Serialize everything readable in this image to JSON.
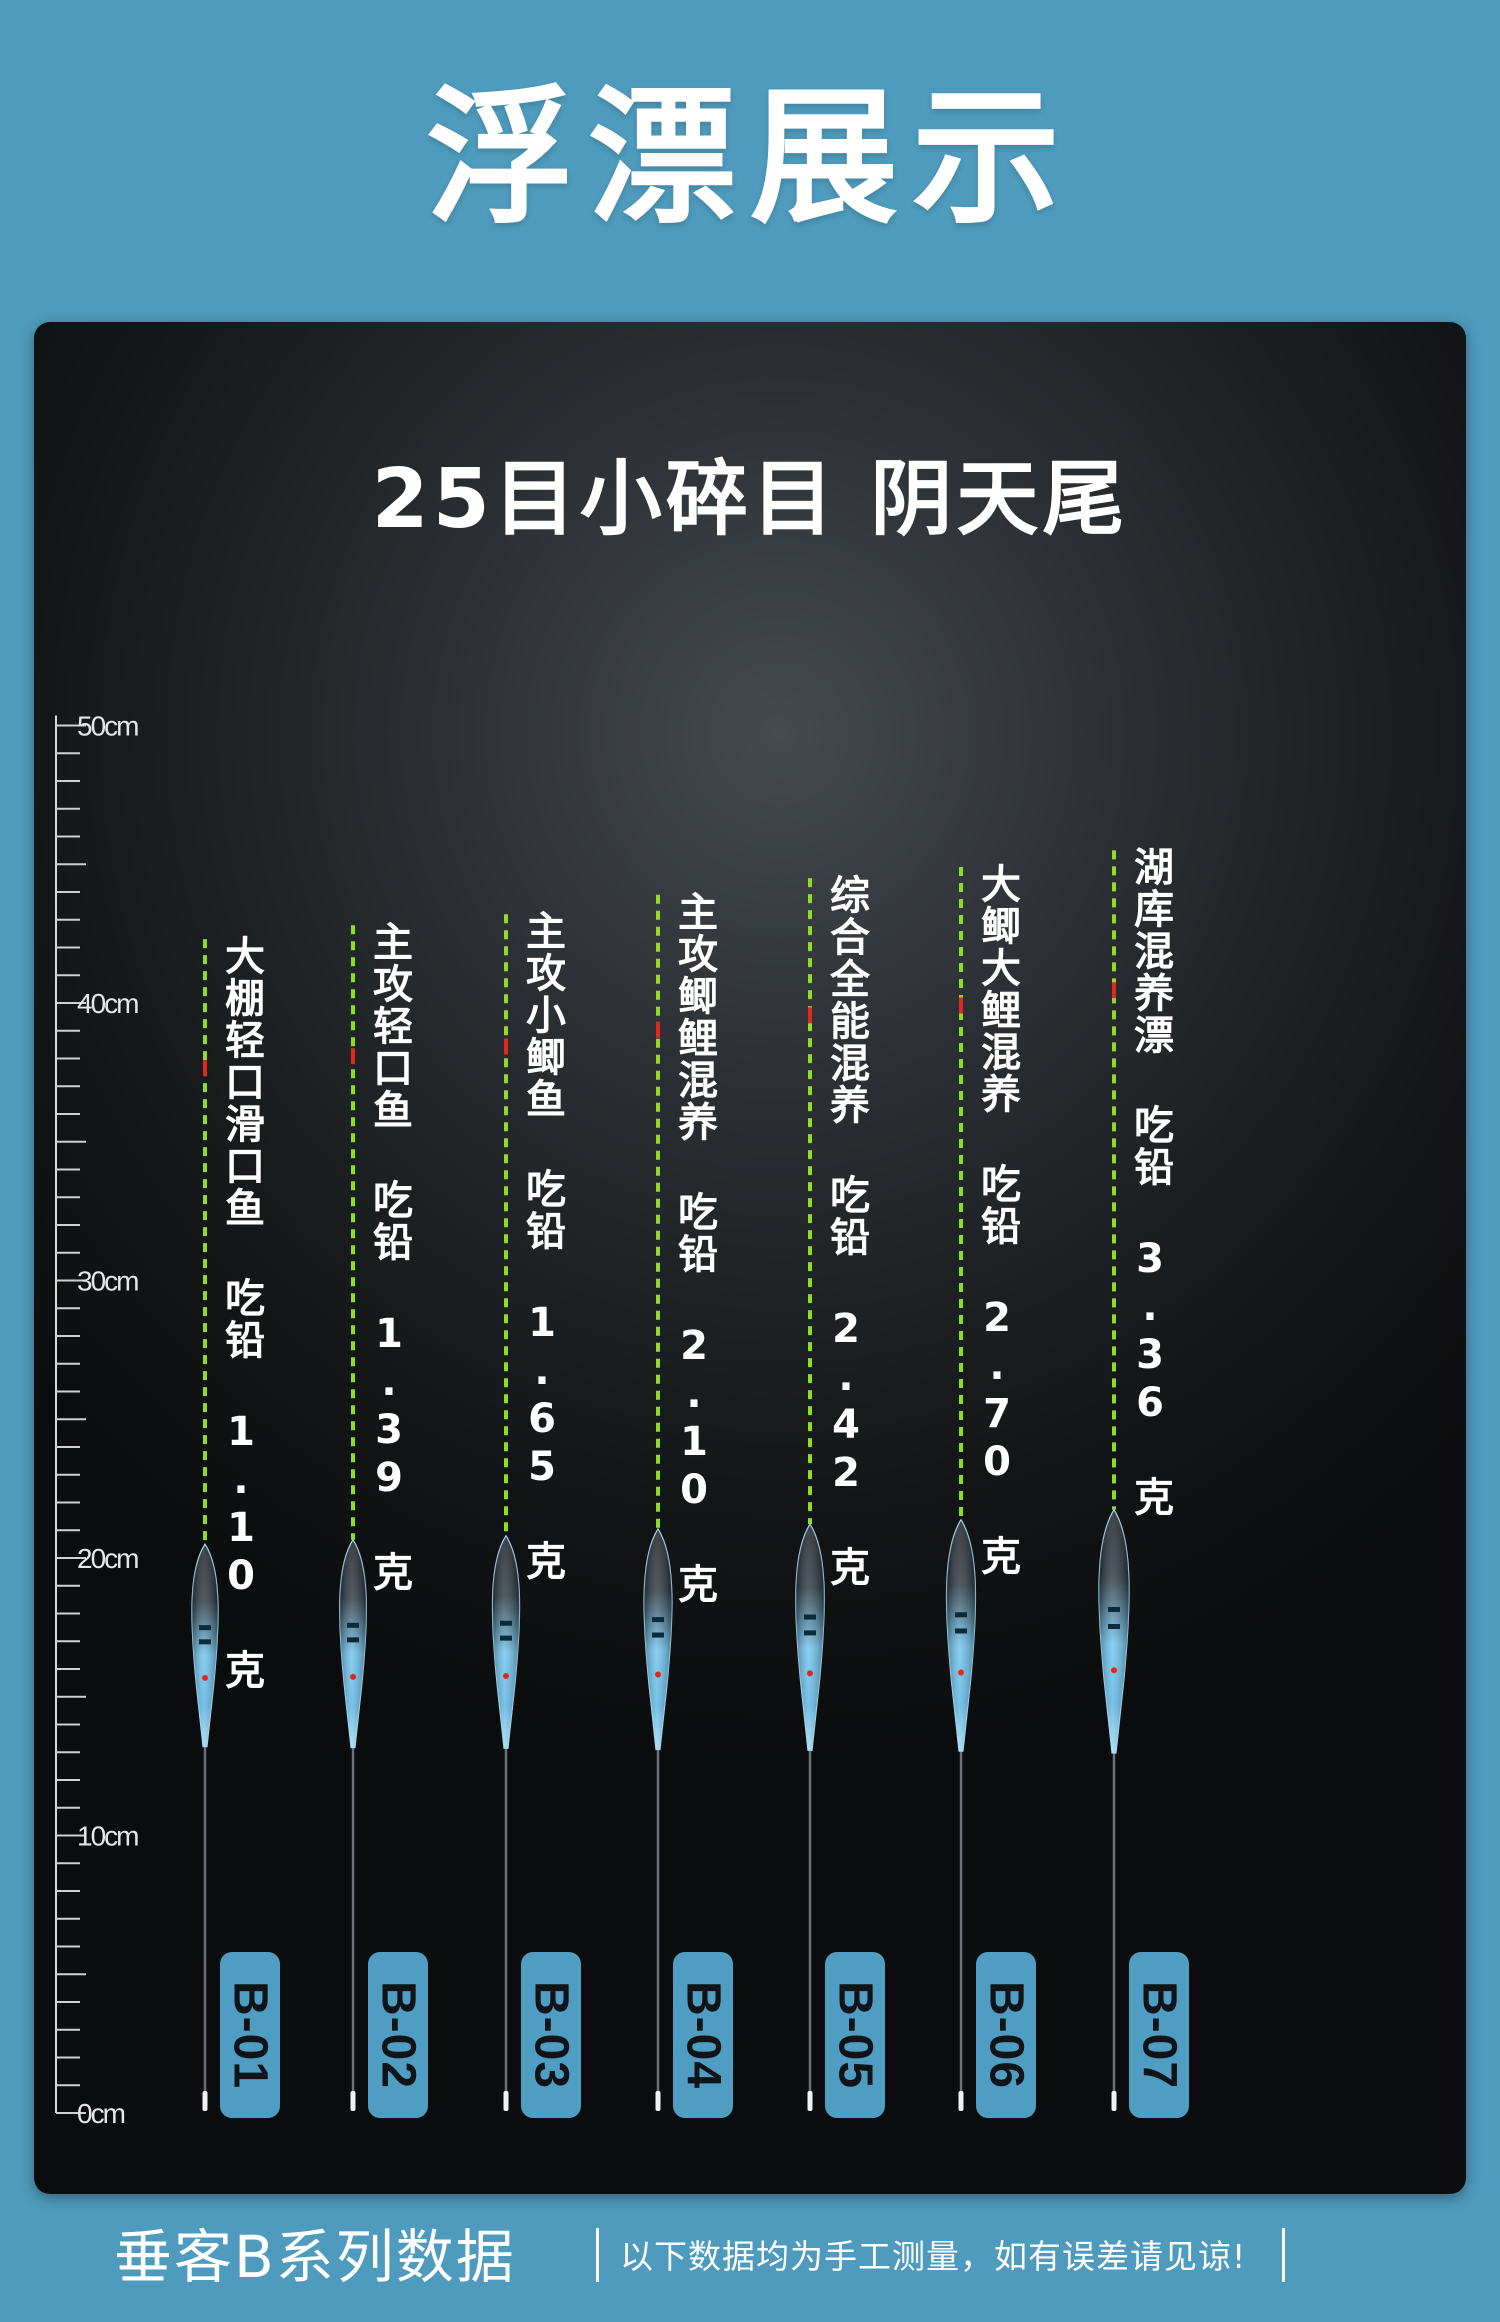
{
  "page": {
    "title": "浮漂展示",
    "background_color": "#4e9bbd"
  },
  "panel": {
    "title": "25目小碎目 阴天尾",
    "background_color": "#1a1c1e"
  },
  "ruler": {
    "unit": "cm",
    "labels": [
      "50cm",
      "40cm",
      "30cm",
      "20cm",
      "10cm",
      "0cm"
    ],
    "max_cm": 50
  },
  "floats": [
    {
      "code": "B-01",
      "description": "大棚轻口滑口鱼 吃铅 1.10 克",
      "top_cm": 42.3,
      "lead_g": 1.1
    },
    {
      "code": "B-02",
      "description": "主攻轻口鱼 吃铅 1.39 克",
      "top_cm": 42.8,
      "lead_g": 1.39
    },
    {
      "code": "B-03",
      "description": "主攻小鲫鱼 吃铅 1.65 克",
      "top_cm": 43.2,
      "lead_g": 1.65
    },
    {
      "code": "B-04",
      "description": "主攻鲫鲤混养 吃铅 2.10 克",
      "top_cm": 43.9,
      "lead_g": 2.1
    },
    {
      "code": "B-05",
      "description": "综合全能混养 吃铅 2.42 克",
      "top_cm": 44.5,
      "lead_g": 2.42
    },
    {
      "code": "B-06",
      "description": "大鲫大鲤混养 吃铅 2.70 克",
      "top_cm": 44.9,
      "lead_g": 2.7
    },
    {
      "code": "B-07",
      "description": "湖库混养漂 吃铅 3.36 克",
      "top_cm": 45.5,
      "lead_g": 3.36
    }
  ],
  "footer": {
    "series_title": "垂客B系列数据",
    "note": "以下数据均为手工测量，如有误差请见谅!"
  },
  "colors": {
    "tip_green": "#8fdc24",
    "tip_red": "#e0291a",
    "badge": "#4f9dc2",
    "body_blue": "#5fb7e6"
  }
}
